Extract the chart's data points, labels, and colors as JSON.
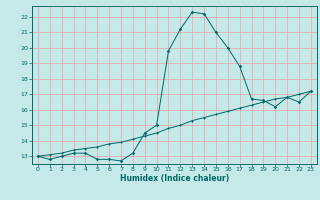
{
  "xlabel": "Humidex (Indice chaleur)",
  "bg_color": "#c5e8e8",
  "grid_color": "#e8a0a8",
  "line_color": "#006868",
  "xlim": [
    -0.5,
    23.5
  ],
  "ylim": [
    12.5,
    22.7
  ],
  "xticks": [
    0,
    1,
    2,
    3,
    4,
    5,
    6,
    7,
    8,
    9,
    10,
    11,
    12,
    13,
    14,
    15,
    16,
    17,
    18,
    19,
    20,
    21,
    22,
    23
  ],
  "yticks": [
    13,
    14,
    15,
    16,
    17,
    18,
    19,
    20,
    21,
    22
  ],
  "curve1_x": [
    0,
    1,
    2,
    3,
    4,
    5,
    6,
    7,
    8,
    9,
    10,
    11,
    12,
    13,
    14,
    15,
    16,
    17,
    18,
    19,
    20,
    21,
    22,
    23
  ],
  "curve1_y": [
    13.0,
    12.8,
    13.0,
    13.2,
    13.2,
    12.8,
    12.8,
    12.7,
    13.2,
    14.5,
    15.0,
    19.8,
    21.2,
    22.3,
    22.2,
    21.0,
    20.0,
    18.8,
    16.7,
    16.6,
    16.2,
    16.8,
    16.5,
    17.2
  ],
  "curve2_x": [
    0,
    1,
    2,
    3,
    4,
    5,
    6,
    7,
    8,
    9,
    10,
    11,
    12,
    13,
    14,
    15,
    16,
    17,
    18,
    19,
    20,
    21,
    22,
    23
  ],
  "curve2_y": [
    13.0,
    13.1,
    13.2,
    13.4,
    13.5,
    13.6,
    13.8,
    13.9,
    14.1,
    14.3,
    14.5,
    14.8,
    15.0,
    15.3,
    15.5,
    15.7,
    15.9,
    16.1,
    16.3,
    16.5,
    16.7,
    16.8,
    17.0,
    17.2
  ]
}
